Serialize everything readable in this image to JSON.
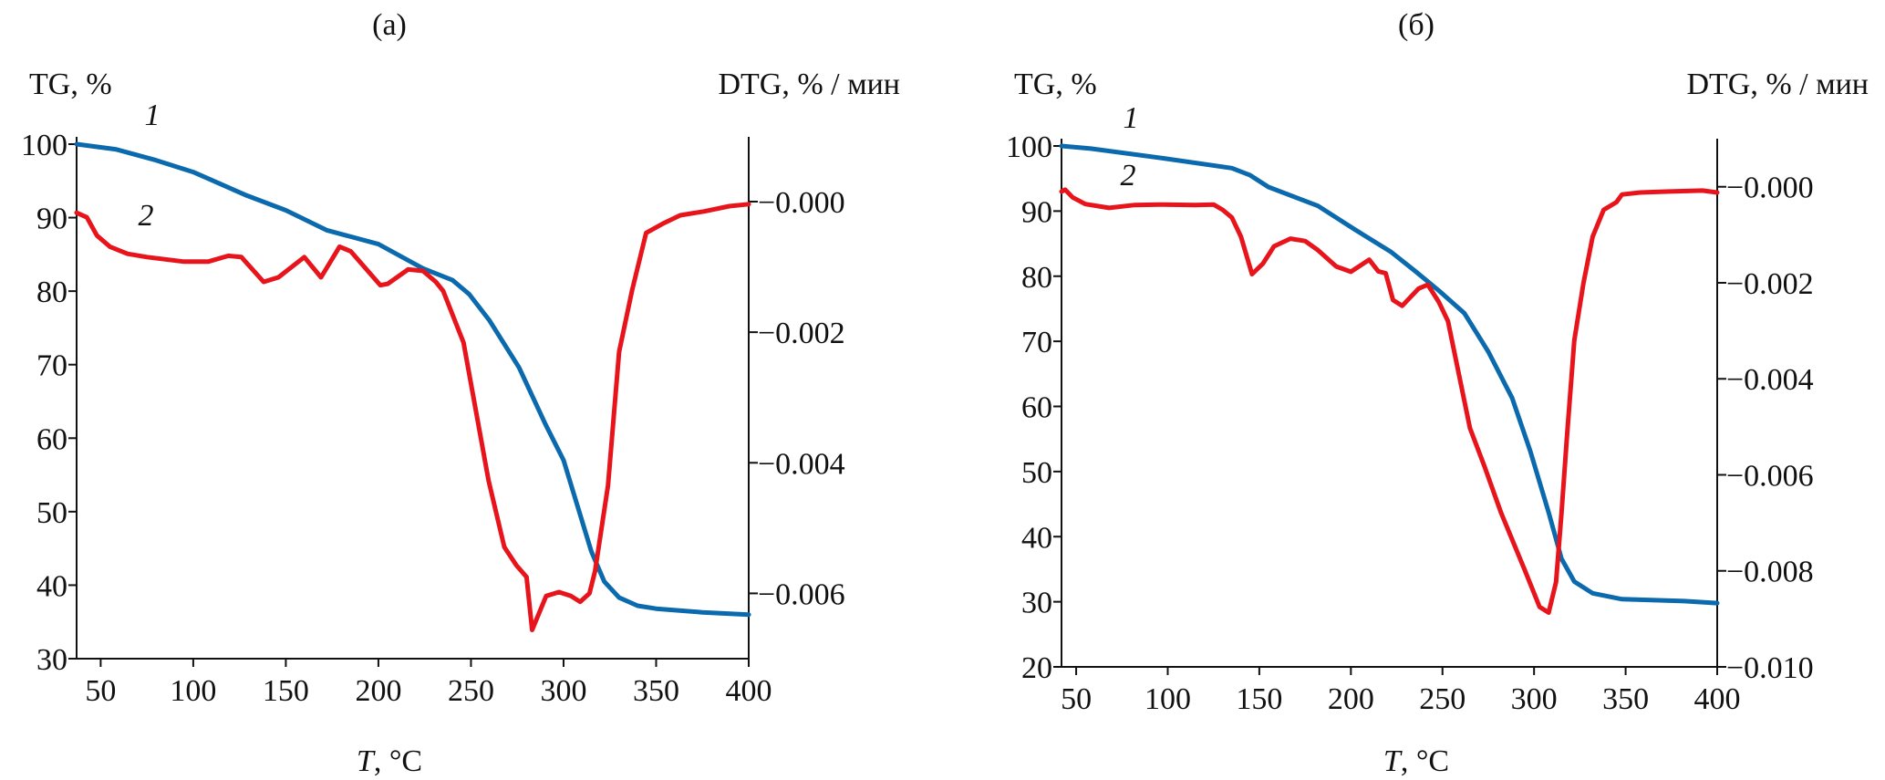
{
  "colors": {
    "tg": "#0b6aad",
    "dtg": "#e8141c",
    "axis": "#111111"
  },
  "chart_data": [
    {
      "type": "line",
      "title": "(a)",
      "xlabel_italic": "T",
      "xlabel_unit": ", °C",
      "ylabel_left": "TG, %",
      "ylabel_right": "DTG, % / мин",
      "xlim": [
        37,
        400
      ],
      "ylim_left": [
        30,
        100
      ],
      "ylim_right": [
        -0.007,
        0.00088
      ],
      "x_ticks": [
        50,
        100,
        150,
        200,
        250,
        300,
        350,
        400
      ],
      "y_left_ticks": [
        30,
        40,
        50,
        60,
        70,
        80,
        90,
        100
      ],
      "y_right_ticks": [
        0,
        -0.002,
        -0.004,
        -0.006
      ],
      "y_right_tick_labels": [
        "−0.000",
        "−0.002",
        "−0.004",
        "−0.006"
      ],
      "series": [
        {
          "name": "1",
          "axis": "left",
          "x": [
            37,
            58,
            80,
            100,
            128,
            150,
            172,
            200,
            224,
            240,
            249,
            260,
            276,
            290,
            300,
            315,
            322,
            330,
            340,
            350,
            375,
            400
          ],
          "y": [
            100,
            99.3,
            97.8,
            96.2,
            93.1,
            91,
            88.3,
            86.4,
            83.1,
            81.5,
            79.6,
            76,
            69.6,
            62,
            57,
            44.6,
            40.5,
            38.3,
            37.2,
            36.8,
            36.3,
            36
          ]
        },
        {
          "name": "2",
          "axis": "right",
          "x": [
            37,
            42.5,
            48,
            55,
            64.5,
            75,
            95,
            108,
            119,
            126,
            138,
            146,
            160,
            169,
            179,
            185,
            201,
            205,
            216,
            224,
            231,
            235,
            246,
            259.5,
            268,
            274.5,
            280,
            283,
            290.6,
            297.5,
            304,
            309,
            314,
            317,
            324,
            330,
            337,
            344.6,
            353.5,
            363,
            376,
            389.5,
            400
          ],
          "y": [
            -0.00017,
            -0.00024,
            -0.00052,
            -0.00069,
            -0.0008,
            -0.00085,
            -0.00092,
            -0.00092,
            -0.00083,
            -0.00085,
            -0.00123,
            -0.00116,
            -0.00085,
            -0.00116,
            -0.00069,
            -0.00076,
            -0.00128,
            -0.00126,
            -0.00104,
            -0.00106,
            -0.00123,
            -0.00137,
            -0.00216,
            -0.00427,
            -0.00529,
            -0.00557,
            -0.00575,
            -0.00656,
            -0.00604,
            -0.00598,
            -0.00604,
            -0.00613,
            -0.006,
            -0.00566,
            -0.00435,
            -0.0023,
            -0.00136,
            -0.00048,
            -0.00034,
            -0.00021,
            -0.00015,
            -7e-05,
            -4e-05
          ]
        }
      ]
    },
    {
      "type": "line",
      "title": "(б)",
      "xlabel_italic": "T",
      "xlabel_unit": ", °C",
      "ylabel_left": "TG, %",
      "ylabel_right": "DTG, % / мин",
      "xlim": [
        42,
        400
      ],
      "ylim_left": [
        20,
        100
      ],
      "ylim_right": [
        -0.01,
        0.00085
      ],
      "x_ticks": [
        50,
        100,
        150,
        200,
        250,
        300,
        350,
        400
      ],
      "y_left_ticks": [
        20,
        30,
        40,
        50,
        60,
        70,
        80,
        90,
        100
      ],
      "y_right_ticks": [
        0,
        -0.002,
        -0.004,
        -0.006,
        -0.008,
        -0.01
      ],
      "y_right_tick_labels": [
        "−0.000",
        "−0.002",
        "−0.004",
        "−0.006",
        "−0.008",
        "−0.010"
      ],
      "series": [
        {
          "name": "1",
          "axis": "left",
          "x": [
            42,
            58,
            98,
            135,
            145,
            155,
            182,
            202,
            222,
            235,
            248,
            262,
            275,
            288,
            298,
            308,
            315,
            322,
            332,
            348,
            382,
            400
          ],
          "y": [
            100,
            99.6,
            98.1,
            96.6,
            95.5,
            93.7,
            90.8,
            87.2,
            83.7,
            80.8,
            77.8,
            74.3,
            68.4,
            61.3,
            53.1,
            43.7,
            36.6,
            33.1,
            31.3,
            30.4,
            30.1,
            29.8
          ]
        },
        {
          "name": "2",
          "axis": "right",
          "x": [
            42,
            44,
            48,
            55,
            68,
            82,
            98,
            115,
            125,
            130,
            135,
            140,
            146,
            152,
            158,
            167,
            175,
            182,
            192,
            200,
            210,
            215,
            219,
            223,
            228,
            237,
            242,
            248,
            253,
            265,
            273,
            282,
            295,
            303,
            308,
            312,
            315,
            318,
            322,
            327,
            332,
            338,
            345,
            348,
            358,
            372,
            392,
            400
          ],
          "y": [
            -0.0001,
            -6e-05,
            -0.00022,
            -0.00036,
            -0.00044,
            -0.00038,
            -0.00037,
            -0.00038,
            -0.00037,
            -0.00048,
            -0.00064,
            -0.00104,
            -0.00182,
            -0.0016,
            -0.00124,
            -0.00108,
            -0.00113,
            -0.00132,
            -0.00166,
            -0.00177,
            -0.00152,
            -0.00176,
            -0.0018,
            -0.00236,
            -0.00248,
            -0.00212,
            -0.00204,
            -0.0024,
            -0.0028,
            -0.00503,
            -0.00583,
            -0.00679,
            -0.00799,
            -0.00875,
            -0.00887,
            -0.00823,
            -0.00679,
            -0.00519,
            -0.0032,
            -0.002,
            -0.00104,
            -0.00048,
            -0.00032,
            -0.00016,
            -0.00012,
            -0.0001,
            -8e-05,
            -0.00012
          ]
        }
      ]
    }
  ]
}
